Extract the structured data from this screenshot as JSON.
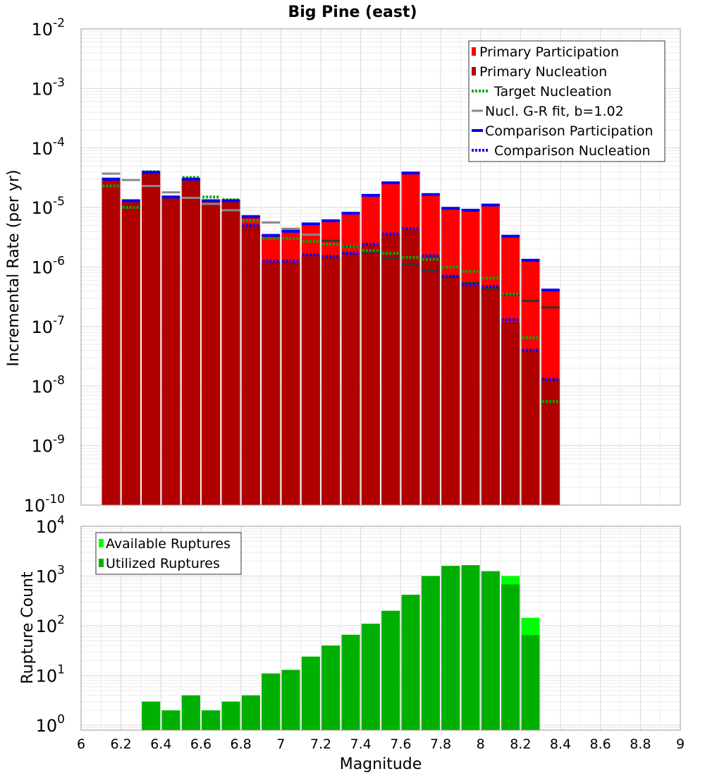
{
  "chart_data": [
    {
      "type": "bar",
      "title": "Big Pine (east)",
      "xlabel": "",
      "ylabel": "Incremental Rate (per yr)",
      "xlim": [
        6,
        9
      ],
      "ylim": [
        1e-10,
        0.01
      ],
      "yscale": "log",
      "x_ticks": [
        "6",
        "6.2",
        "6.4",
        "6.6",
        "6.8",
        "7",
        "7.2",
        "7.4",
        "7.6",
        "7.8",
        "8",
        "8.2",
        "8.4",
        "8.6",
        "8.8",
        "9"
      ],
      "y_tick_exponents": [
        "-10",
        "-9",
        "-8",
        "-7",
        "-6",
        "-5",
        "-4",
        "-3",
        "-2"
      ],
      "y_tick_base": "10",
      "grid": true,
      "legend_position": "top-right",
      "x": [
        6.15,
        6.25,
        6.35,
        6.45,
        6.55,
        6.65,
        6.75,
        6.85,
        6.95,
        7.05,
        7.15,
        7.25,
        7.35,
        7.45,
        7.55,
        7.65,
        7.75,
        7.85,
        7.95,
        8.05,
        8.15,
        8.25,
        8.35
      ],
      "series": [
        {
          "name": "Primary Participation",
          "color": "#ff0000",
          "style": "bar",
          "values": [
            3e-05,
            1.3e-05,
            3.9e-05,
            1.5e-05,
            3e-05,
            1.3e-05,
            1.3e-05,
            7e-06,
            3.3e-06,
            3.9e-06,
            5.2e-06,
            5.9e-06,
            7.8e-06,
            1.6e-05,
            2.6e-05,
            3.7e-05,
            1.6e-05,
            9.5e-06,
            8.8e-06,
            1.1e-05,
            3.2e-06,
            1.25e-06,
            4e-07
          ]
        },
        {
          "name": "Primary Nucleation",
          "color": "#b00000",
          "style": "bar",
          "values": [
            3e-05,
            1.3e-05,
            3.9e-05,
            1.5e-05,
            3e-05,
            1.3e-05,
            1.3e-05,
            5e-06,
            1.2e-06,
            1.2e-06,
            1.6e-06,
            1.5e-06,
            1.7e-06,
            2.3e-06,
            3.5e-06,
            4.2e-06,
            1.5e-06,
            6.7e-07,
            4.9e-07,
            4.6e-07,
            1.2e-07,
            4e-08,
            1.3e-08
          ]
        },
        {
          "name": "Target Nucleation",
          "color": "#00aa00",
          "style": "dotted",
          "values": [
            2.3e-05,
            1e-05,
            4e-05,
            1.5e-05,
            3.2e-05,
            1.5e-05,
            1.35e-05,
            6e-06,
            3e-06,
            3e-06,
            2.7e-06,
            2.4e-06,
            2.2e-06,
            1.9e-06,
            1.7e-06,
            1.45e-06,
            1.35e-06,
            1e-06,
            8.5e-07,
            6.5e-07,
            3.5e-07,
            6.5e-08,
            5.5e-09
          ]
        },
        {
          "name": "Nucl. G-R fit, b=1.02",
          "color": "#888888",
          "style": "solid",
          "values": [
            3.7e-05,
            2.9e-05,
            2.3e-05,
            1.8e-05,
            1.45e-05,
            1.15e-05,
            9e-06,
            7.2e-06,
            5.6e-06,
            4.4e-06,
            3.5e-06,
            2.75e-06,
            2.2e-06,
            1.75e-06,
            1.4e-06,
            1.1e-06,
            8.6e-07,
            6.8e-07,
            5.4e-07,
            4.3e-07,
            3.4e-07,
            2.7e-07,
            2.1e-07
          ]
        },
        {
          "name": "Comparison Participation",
          "color": "#0000ff",
          "style": "solid",
          "values": [
            3e-05,
            1.3e-05,
            3.9e-05,
            1.5e-05,
            3e-05,
            1.3e-05,
            1.3e-05,
            7e-06,
            3.4e-06,
            4e-06,
            5.3e-06,
            6e-06,
            8e-06,
            1.6e-05,
            2.6e-05,
            3.8e-05,
            1.65e-05,
            9.7e-06,
            9e-06,
            1.1e-05,
            3.3e-06,
            1.3e-06,
            4.1e-07
          ]
        },
        {
          "name": "Comparison Nucleation",
          "color": "#0000ff",
          "style": "dotted",
          "values": [
            3e-05,
            1.3e-05,
            3.9e-05,
            1.5e-05,
            3e-05,
            1.3e-05,
            1.3e-05,
            5e-06,
            1.25e-06,
            1.25e-06,
            1.6e-06,
            1.5e-06,
            1.7e-06,
            2.4e-06,
            3.6e-06,
            4.4e-06,
            1.55e-06,
            7e-07,
            5e-07,
            4.7e-07,
            1.3e-07,
            4e-08,
            1.3e-08
          ]
        }
      ]
    },
    {
      "type": "bar",
      "title": "",
      "xlabel": "Magnitude",
      "ylabel": "Rupture Count",
      "xlim": [
        6,
        9
      ],
      "ylim": [
        0.8,
        10000
      ],
      "yscale": "log",
      "x_ticks": [
        "6",
        "6.2",
        "6.4",
        "6.6",
        "6.8",
        "7",
        "7.2",
        "7.4",
        "7.6",
        "7.8",
        "8",
        "8.2",
        "8.4",
        "8.6",
        "8.8",
        "9"
      ],
      "y_tick_exponents": [
        "0",
        "1",
        "2",
        "3",
        "4"
      ],
      "y_tick_base": "10",
      "grid": true,
      "legend_position": "top-left",
      "x": [
        6.35,
        6.45,
        6.55,
        6.65,
        6.75,
        6.85,
        6.95,
        7.05,
        7.15,
        7.25,
        7.35,
        7.45,
        7.55,
        7.65,
        7.75,
        7.85,
        7.95,
        8.05,
        8.15,
        8.25
      ],
      "series": [
        {
          "name": "Available Ruptures",
          "color": "#00ff00",
          "values": [
            3,
            2,
            4,
            2,
            3,
            4,
            11,
            13,
            24,
            40,
            66,
            110,
            200,
            420,
            1000,
            1600,
            1650,
            1250,
            1000,
            145
          ]
        },
        {
          "name": "Utilized Ruptures",
          "color": "#00b000",
          "values": [
            3,
            2,
            4,
            2,
            3,
            4,
            11,
            13,
            24,
            40,
            66,
            110,
            200,
            420,
            1000,
            1600,
            1650,
            1250,
            680,
            65
          ]
        }
      ]
    }
  ]
}
